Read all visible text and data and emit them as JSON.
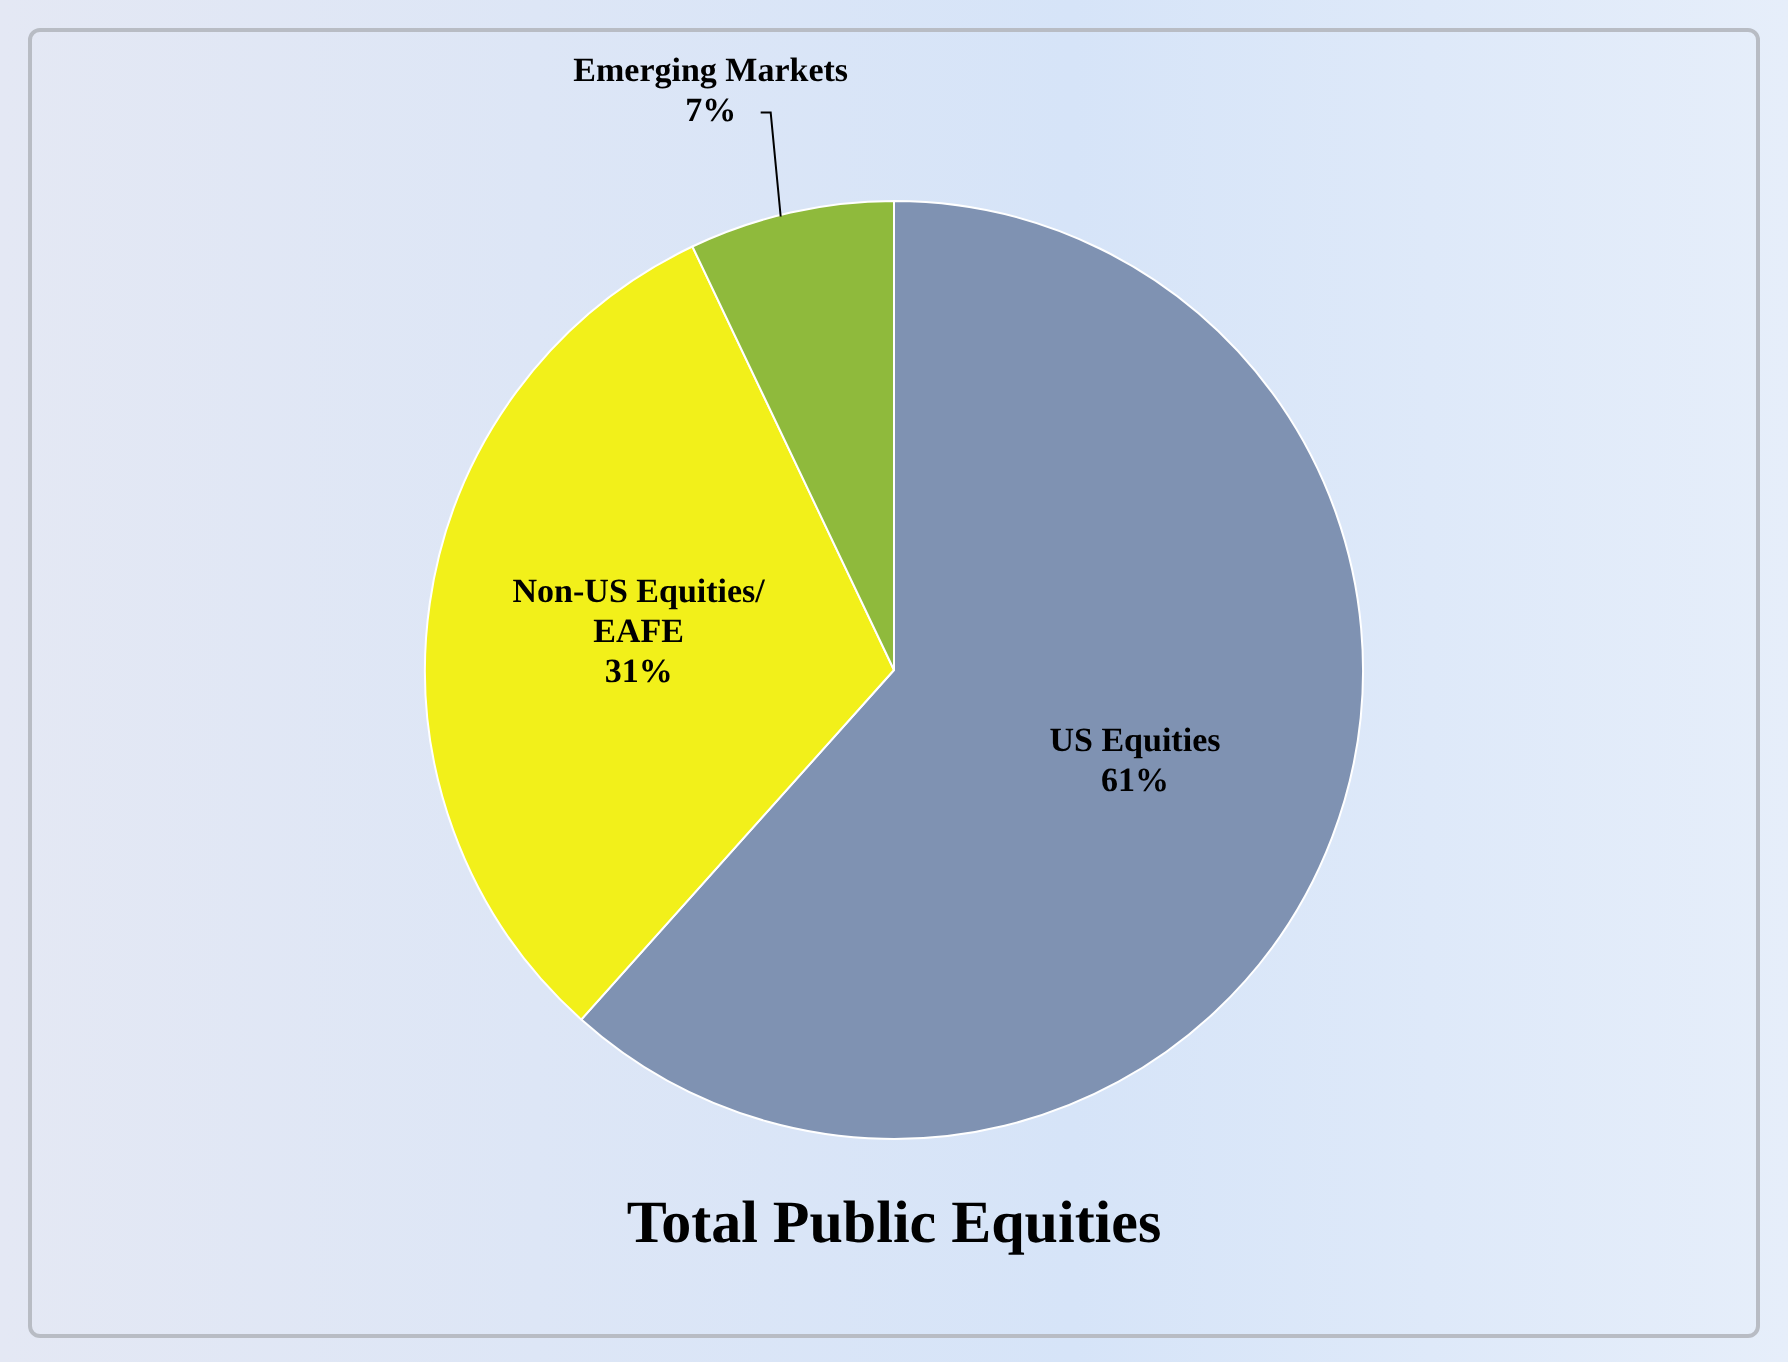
{
  "chart_data": {
    "type": "pie",
    "title": "Total Public Equities",
    "categories": [
      "US Equities",
      "Non-US Equities/EAFE",
      "Emerging Markets"
    ],
    "values": [
      61,
      31,
      7
    ],
    "value_labels": [
      "61%",
      "31%",
      "7%"
    ],
    "colors": [
      "#7f92b2",
      "#f2f01a",
      "#8fba3c"
    ],
    "legend": false
  }
}
